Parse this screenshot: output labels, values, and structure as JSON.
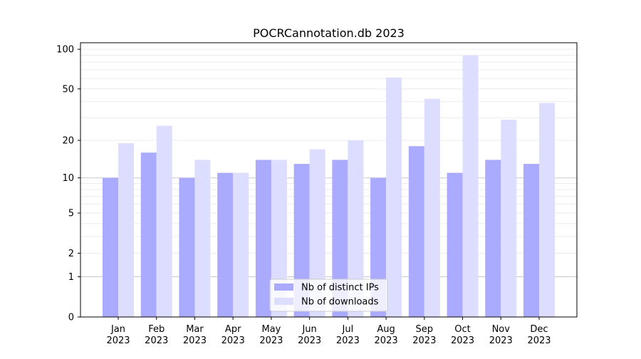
{
  "chart_data": {
    "type": "bar",
    "title": "POCRCannotation.db 2023",
    "xlabel": "",
    "ylabel": "",
    "yscale": "symlog (log10(1+y))",
    "ylim": [
      0,
      112
    ],
    "yticks": [
      0,
      1,
      2,
      5,
      10,
      20,
      50,
      100
    ],
    "categories": [
      [
        "Jan",
        "2023"
      ],
      [
        "Feb",
        "2023"
      ],
      [
        "Mar",
        "2023"
      ],
      [
        "Apr",
        "2023"
      ],
      [
        "May",
        "2023"
      ],
      [
        "Jun",
        "2023"
      ],
      [
        "Jul",
        "2023"
      ],
      [
        "Aug",
        "2023"
      ],
      [
        "Sep",
        "2023"
      ],
      [
        "Oct",
        "2023"
      ],
      [
        "Nov",
        "2023"
      ],
      [
        "Dec",
        "2023"
      ]
    ],
    "series": [
      {
        "name": "Nb of distinct IPs",
        "color": "#aaaaff",
        "values": [
          10,
          16,
          10,
          11,
          14,
          13,
          14,
          10,
          18,
          11,
          14,
          13
        ]
      },
      {
        "name": "Nb of downloads",
        "color": "#ddddff",
        "values": [
          19,
          26,
          14,
          11,
          14,
          17,
          20,
          61,
          42,
          90,
          29,
          39
        ]
      }
    ],
    "grid": true,
    "legend_position": "bottom-center"
  }
}
